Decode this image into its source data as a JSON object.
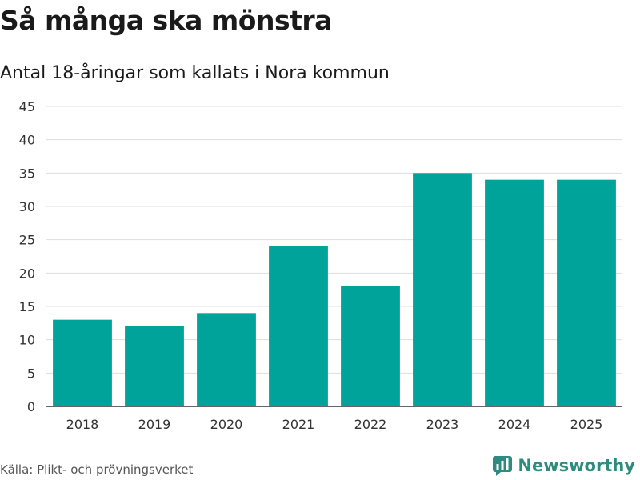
{
  "header": {
    "title": "Så många ska mönstra",
    "subtitle": "Antal 18-åringar som kallats i Nora kommun"
  },
  "footer": {
    "source": "Källa: Plikt- och prövningsverket",
    "brand_name": "Newsworthy"
  },
  "colors": {
    "bar": "#00a39a",
    "brand": "#2e8b7f",
    "grid": "#dddddd",
    "axis": "#333333"
  },
  "chart_data": {
    "type": "bar",
    "title": "Så många ska mönstra",
    "subtitle": "Antal 18-åringar som kallats i Nora kommun",
    "xlabel": "",
    "ylabel": "",
    "categories": [
      "2018",
      "2019",
      "2020",
      "2021",
      "2022",
      "2023",
      "2024",
      "2025"
    ],
    "values": [
      13,
      12,
      14,
      24,
      18,
      35,
      34,
      34
    ],
    "ylim": [
      0,
      45
    ],
    "yticks": [
      0,
      5,
      10,
      15,
      20,
      25,
      30,
      35,
      40,
      45
    ],
    "grid": true
  }
}
